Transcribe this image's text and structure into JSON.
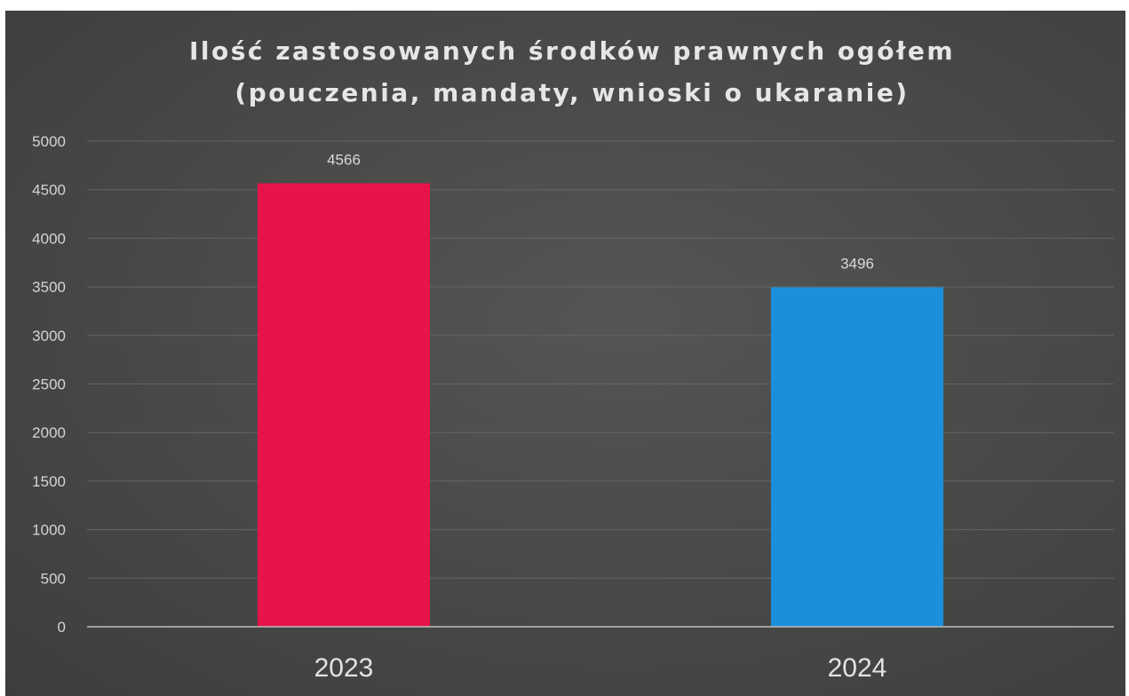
{
  "chart_data": {
    "type": "bar",
    "title": [
      "Ilość zastosowanych środków prawnych ogółem",
      "(pouczenia, mandaty, wnioski o ukaranie)"
    ],
    "categories": [
      "2023",
      "2024"
    ],
    "values": [
      4566,
      3496
    ],
    "data_labels": [
      "4566",
      "3496"
    ],
    "bar_colors": [
      "#e8134a",
      "#1c8fdb"
    ],
    "ylim": [
      0,
      5000
    ],
    "yticks": [
      "0",
      "500",
      "1000",
      "1500",
      "2000",
      "2500",
      "3000",
      "3500",
      "4000",
      "4500",
      "5000"
    ],
    "xlabel": "",
    "ylabel": "",
    "grid": true,
    "legend": "none",
    "background_color": "#4a4c4a"
  }
}
